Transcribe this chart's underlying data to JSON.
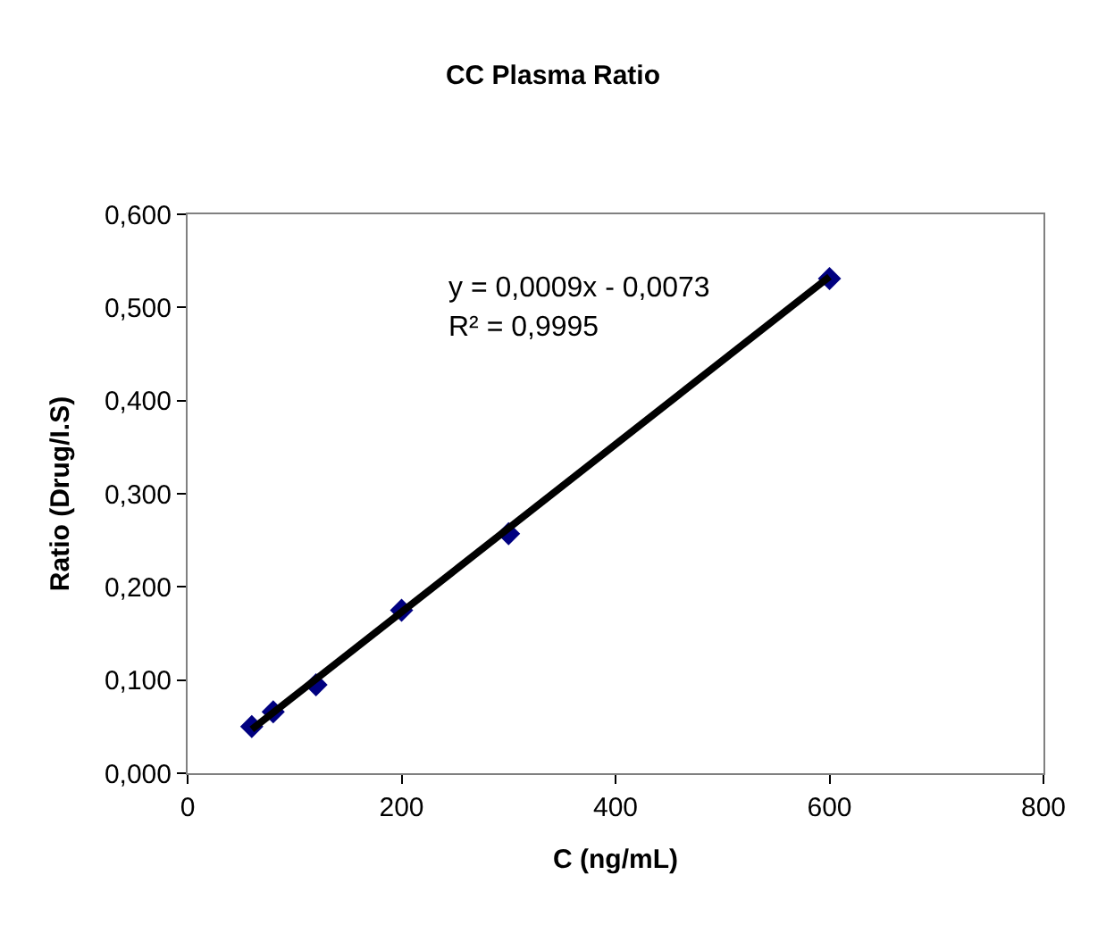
{
  "chart_data": {
    "type": "scatter",
    "title": "CC Plasma Ratio",
    "xlabel": "C (ng/mL)",
    "ylabel": "Ratio (Drug/I.S)",
    "series": [
      {
        "color": "#000080",
        "marker": "diamond",
        "x": [
          60,
          80,
          120,
          200,
          300,
          600
        ],
        "values": [
          0.05,
          0.066,
          0.095,
          0.175,
          0.257,
          0.531
        ]
      },
      {
        "type": "line",
        "color": "#000000",
        "marker": "none",
        "line_style": "solid",
        "x": [
          60,
          600
        ],
        "values": [
          0.047,
          0.533
        ]
      }
    ],
    "annotations": [
      "y = 0,0009x - 0,0073",
      "R² = 0,9995"
    ],
    "xlim": [
      0,
      800
    ],
    "xticks": [
      0,
      200,
      400,
      600,
      800
    ],
    "ylim": [
      0,
      0.6
    ],
    "yticks": [
      {
        "value": 0,
        "label": "0,000"
      },
      {
        "value": 0.1,
        "label": "0,100"
      },
      {
        "value": 0.2,
        "label": "0,200"
      },
      {
        "value": 0.3,
        "label": "0,300"
      },
      {
        "value": 0.4,
        "label": "0,400"
      },
      {
        "value": 0.5,
        "label": "0,500"
      },
      {
        "value": 0.6,
        "label": "0,600"
      }
    ]
  }
}
